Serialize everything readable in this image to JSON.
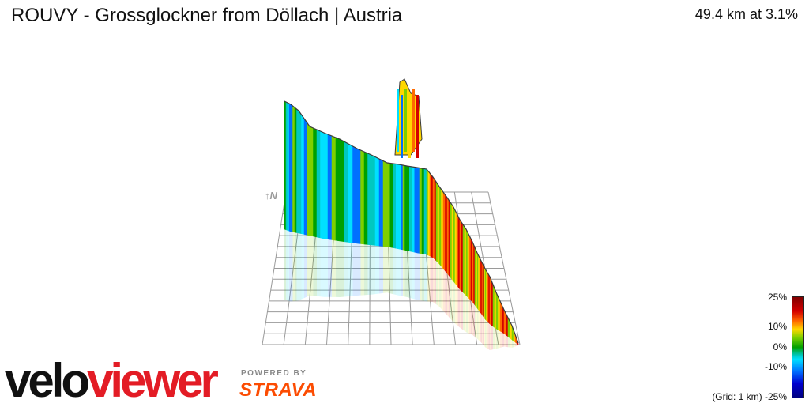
{
  "header": {
    "title": "ROUVY - Grossglockner from Döllach | Austria",
    "summary": "49.4 km at 3.1%"
  },
  "compass": {
    "label": "↑N"
  },
  "branding": {
    "logo_part1": "velo",
    "logo_part2": "viewer",
    "powered_by": "POWERED BY",
    "strava": "STRAVA"
  },
  "legend": {
    "labels": [
      "25%",
      "10%",
      "0%",
      "-10%",
      "(Grid: 1 km) -25%"
    ],
    "colors": {
      "steep_up": "#800000",
      "up": "#ff6a00",
      "mild_up": "#ffd700",
      "flat": "#00a000",
      "mild_down": "#00e0ff",
      "down": "#0070ff",
      "steep_down": "#000080"
    }
  }
}
